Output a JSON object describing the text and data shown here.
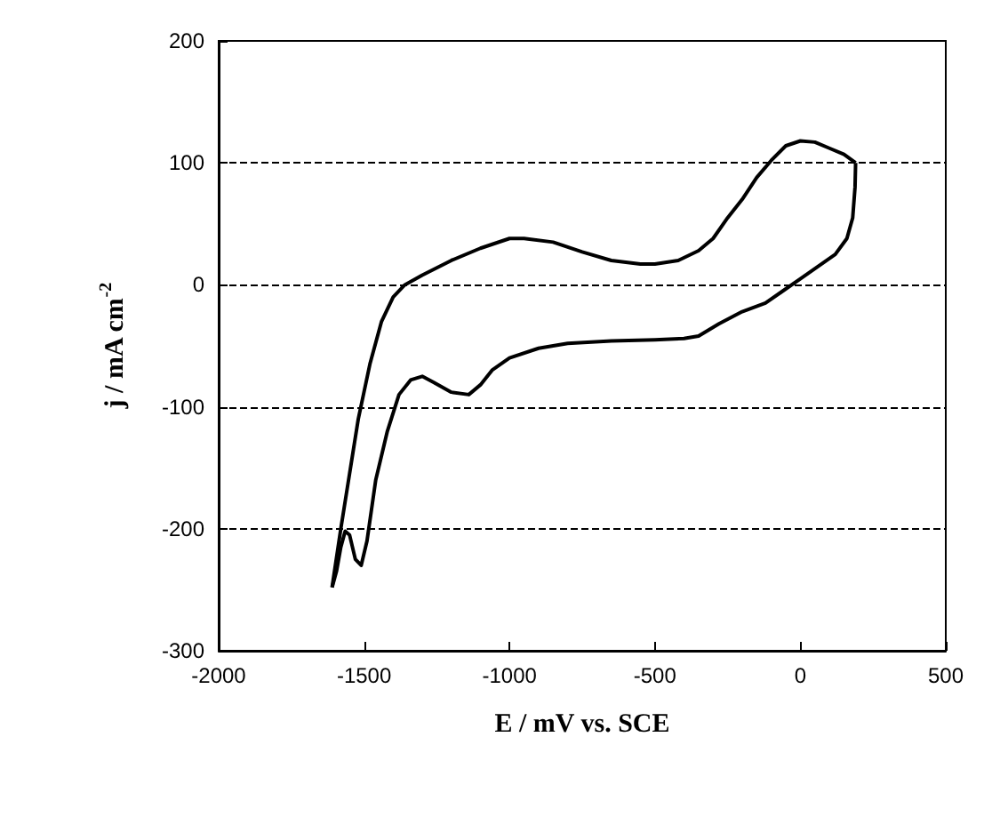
{
  "chart_data": {
    "type": "line",
    "xlabel": "E / mV vs. SCE",
    "ylabel": "j / mA cm$^{-2}$",
    "xlim": [
      -2000,
      500
    ],
    "xticks": [
      -2000,
      -1500,
      -1000,
      -500,
      0,
      500
    ],
    "ylim": [
      -300,
      200
    ],
    "yticks": [
      -300,
      -200,
      -100,
      0,
      100,
      200
    ],
    "grid": "y",
    "marker": "none",
    "line_style": "solid",
    "series": [
      {
        "color": "#000000",
        "x": [
          -1610,
          -1580,
          -1550,
          -1520,
          -1480,
          -1440,
          -1400,
          -1360,
          -1300,
          -1200,
          -1100,
          -1000,
          -950,
          -850,
          -750,
          -650,
          -550,
          -500,
          -420,
          -350,
          -300,
          -250,
          -200,
          -150,
          -100,
          -50,
          0,
          50,
          100,
          150,
          190
        ],
        "values": [
          -248,
          -200,
          -155,
          -110,
          -65,
          -30,
          -10,
          0,
          8,
          20,
          30,
          38,
          38,
          35,
          27,
          20,
          17,
          17,
          20,
          28,
          38,
          55,
          70,
          88,
          102,
          114,
          118,
          117,
          112,
          107,
          100
        ]
      },
      {
        "color": "#000000",
        "x": [
          -1610,
          -1595,
          -1580,
          -1565,
          -1550,
          -1530,
          -1510,
          -1490,
          -1460,
          -1420,
          -1380,
          -1340,
          -1300,
          -1260,
          -1200,
          -1140,
          -1100,
          -1060,
          -1000,
          -900,
          -800,
          -650,
          -500,
          -400,
          -350,
          -280,
          -200,
          -120,
          -60,
          0,
          60,
          120,
          160,
          180,
          188,
          190
        ],
        "values": [
          -248,
          -235,
          -215,
          -202,
          -205,
          -225,
          -230,
          -210,
          -160,
          -120,
          -90,
          -78,
          -75,
          -80,
          -88,
          -90,
          -82,
          -70,
          -60,
          -52,
          -48,
          -46,
          -45,
          -44,
          -42,
          -32,
          -22,
          -15,
          -5,
          5,
          15,
          25,
          38,
          55,
          80,
          100
        ]
      }
    ]
  }
}
